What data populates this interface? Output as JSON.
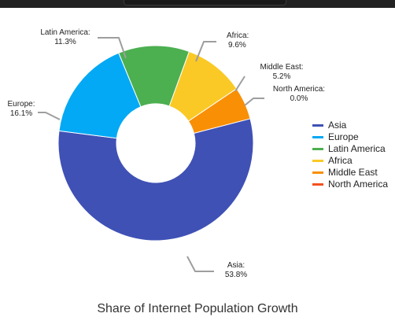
{
  "chart_data": {
    "type": "pie",
    "donut": true,
    "title": "Share of Internet Population Growth",
    "slices": [
      {
        "name": "Africa",
        "value": 9.6,
        "color": "#FAC925",
        "label": "Africa:",
        "value_label": "9.6%"
      },
      {
        "name": "Middle East",
        "value": 5.2,
        "color": "#F98F05",
        "label": "Middle East:",
        "value_label": "5.2%"
      },
      {
        "name": "North America",
        "value": 0.0,
        "color": "#F4511E",
        "label": "North America:",
        "value_label": "0.0%"
      },
      {
        "name": "Asia",
        "value": 53.8,
        "color": "#3F51B5",
        "label": "Asia:",
        "value_label": "53.8%"
      },
      {
        "name": "Europe",
        "value": 16.1,
        "color": "#03A9F4",
        "label": "Europe:",
        "value_label": "16.1%"
      },
      {
        "name": "Latin America",
        "value": 11.3,
        "color": "#4CAF50",
        "label": "Latin America:",
        "value_label": "11.3%"
      }
    ],
    "legend": {
      "position": "right",
      "entries": [
        "Asia",
        "Europe",
        "Latin America",
        "Africa",
        "Middle East",
        "North America"
      ]
    }
  }
}
